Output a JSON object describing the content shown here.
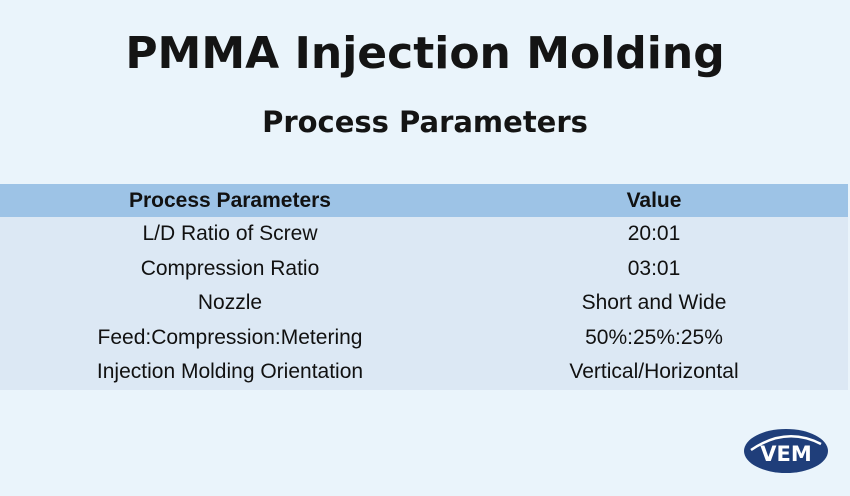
{
  "title": "PMMA Injection Molding",
  "subtitle": "Process Parameters",
  "table": {
    "headers": {
      "param": "Process Parameters",
      "value": "Value"
    },
    "rows": [
      {
        "param": "L/D Ratio of Screw",
        "value": "20:01"
      },
      {
        "param": "Compression Ratio",
        "value": "03:01"
      },
      {
        "param": "Nozzle",
        "value": "Short and Wide"
      },
      {
        "param": "Feed:Compression:Metering",
        "value": "50%:25%:25%"
      },
      {
        "param": "Injection Molding Orientation",
        "value": "Vertical/Horizontal"
      }
    ]
  },
  "logo": {
    "text": "VEM",
    "color": "#1f3e7a"
  },
  "colors": {
    "background": "#eaf4fb",
    "header": "#9dc3e6",
    "rows": "#dce8f4"
  }
}
